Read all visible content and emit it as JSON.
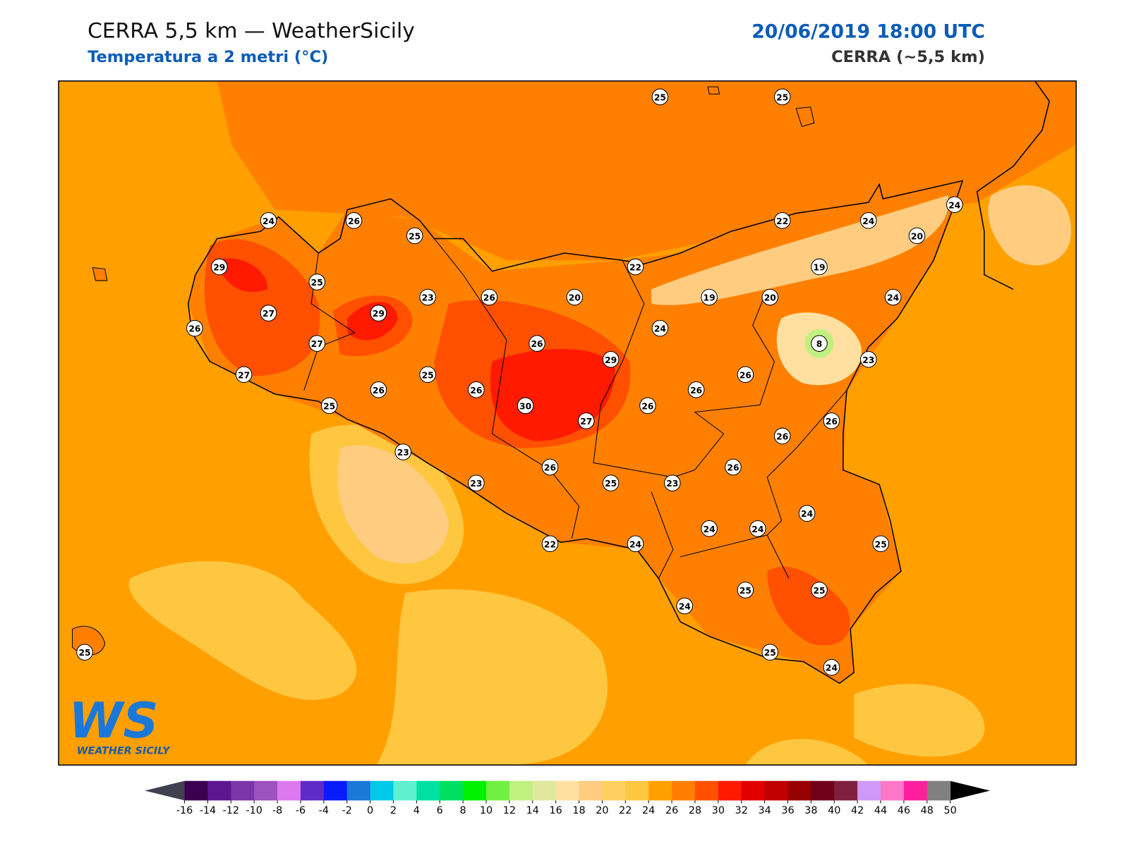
{
  "header": {
    "title": "CERRA 5,5 km — WeatherSicily",
    "subtitle": "Temperatura a 2 metri (°C)",
    "date": "20/06/2019 18:00 UTC",
    "model": "CERRA (~5,5 km)"
  },
  "stations": [
    25,
    25,
    24,
    26,
    25,
    22,
    24,
    24,
    20,
    29,
    25,
    22,
    19,
    29,
    27,
    23,
    26,
    20,
    19,
    20,
    24,
    26,
    27,
    26,
    29,
    24,
    8,
    23,
    27,
    25,
    26,
    26,
    26,
    26,
    25,
    30,
    27,
    26,
    26,
    26,
    23,
    26,
    26,
    23,
    25,
    23,
    24,
    24,
    24,
    22,
    24,
    25,
    25,
    25,
    24,
    25,
    25,
    24
  ],
  "colorbar": {
    "ticks": [
      -16,
      -14,
      -12,
      -10,
      -8,
      -6,
      -4,
      -2,
      0,
      2,
      4,
      6,
      8,
      10,
      12,
      14,
      16,
      18,
      20,
      22,
      24,
      26,
      28,
      30,
      32,
      34,
      36,
      38,
      40,
      42,
      44,
      46,
      48,
      50
    ],
    "colors": [
      "#3b0050",
      "#5e1590",
      "#7a35a8",
      "#9c52bf",
      "#de78f0",
      "#5f2bc8",
      "#0a1aff",
      "#1a78d8",
      "#00c8e8",
      "#5ff0d0",
      "#00e0a0",
      "#00e060",
      "#00f000",
      "#70f040",
      "#c0f080",
      "#e0e8a0",
      "#ffe0a0",
      "#ffcc80",
      "#ffd060",
      "#ffc640",
      "#ffa000",
      "#ff8000",
      "#ff5000",
      "#ff1a00",
      "#e00000",
      "#c00000",
      "#960000",
      "#700018",
      "#802040",
      "#d098f8",
      "#ff78c8",
      "#ff20a0",
      "#808080",
      "#383838"
    ],
    "under_color": "#404050",
    "over_color": "#000000"
  },
  "logo": {
    "mark": "WS",
    "text": "WEATHER SICILY"
  }
}
